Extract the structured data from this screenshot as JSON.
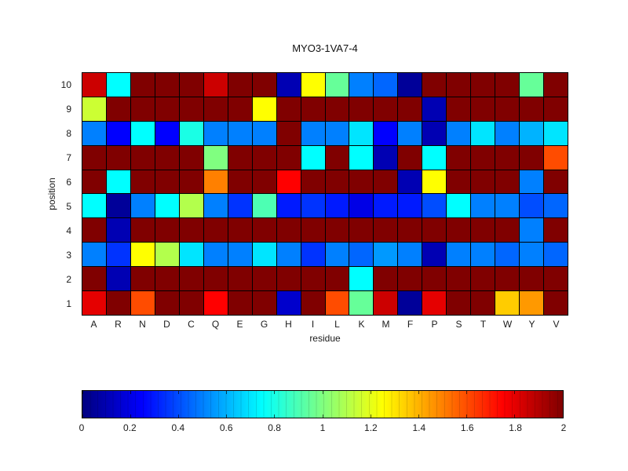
{
  "figure": {
    "background": "#ffffff",
    "grid_line_color": "#000000",
    "text_color": "#1a1a1a"
  },
  "chart_data": {
    "type": "heatmap",
    "title": "MYO3-1VA7-4",
    "xlabel": "residue",
    "ylabel": "position",
    "colormap": "jet",
    "x_categories": [
      "A",
      "R",
      "N",
      "D",
      "C",
      "Q",
      "E",
      "G",
      "H",
      "I",
      "L",
      "K",
      "M",
      "F",
      "P",
      "S",
      "T",
      "W",
      "Y",
      "V"
    ],
    "y_categories": [
      "10",
      "9",
      "8",
      "7",
      "6",
      "5",
      "4",
      "3",
      "2",
      "1"
    ],
    "value_range": [
      0,
      2
    ],
    "values": [
      [
        1.85,
        0.75,
        2,
        2,
        2,
        1.85,
        2,
        2,
        0.1,
        1.25,
        0.95,
        0.5,
        0.45,
        0.05,
        2,
        2,
        2,
        2,
        0.95,
        2
      ],
      [
        1.15,
        2,
        2,
        2,
        2,
        2,
        2,
        1.25,
        2,
        2,
        2,
        2,
        2,
        2,
        0.1,
        2,
        2,
        2,
        2,
        2
      ],
      [
        0.5,
        0.25,
        0.75,
        0.25,
        0.8,
        0.5,
        0.5,
        0.5,
        2,
        0.5,
        0.5,
        0.7,
        0.25,
        0.5,
        0.1,
        0.5,
        0.7,
        0.5,
        0.6,
        0.7
      ],
      [
        2,
        2,
        2,
        2,
        2,
        1.0,
        2,
        2,
        2,
        0.75,
        2,
        0.75,
        0.1,
        2,
        0.75,
        2,
        2,
        2,
        2,
        1.6
      ],
      [
        2,
        0.75,
        2,
        2,
        2,
        1.5,
        2,
        2,
        1.75,
        2,
        2,
        2,
        2,
        0.1,
        1.25,
        2,
        2,
        2,
        0.5,
        2
      ],
      [
        0.75,
        0.05,
        0.5,
        0.75,
        1.1,
        0.5,
        0.35,
        0.9,
        0.3,
        0.35,
        0.3,
        0.2,
        0.3,
        0.3,
        0.4,
        0.75,
        0.5,
        0.5,
        0.4,
        0.45
      ],
      [
        2,
        0.1,
        2,
        2,
        2,
        2,
        2,
        2,
        2,
        2,
        2,
        2,
        2,
        2,
        2,
        2,
        2,
        2,
        0.5,
        2
      ],
      [
        0.5,
        0.35,
        1.25,
        1.1,
        0.7,
        0.5,
        0.5,
        0.7,
        0.5,
        0.35,
        0.5,
        0.45,
        0.55,
        0.5,
        0.1,
        0.5,
        0.5,
        0.45,
        0.5,
        0.45
      ],
      [
        2,
        0.1,
        2,
        2,
        2,
        2,
        2,
        2,
        2,
        2,
        2,
        0.75,
        2,
        2,
        2,
        2,
        2,
        2,
        2,
        2
      ],
      [
        1.8,
        2,
        1.6,
        2,
        2,
        1.75,
        2,
        2,
        0.15,
        2,
        1.6,
        0.95,
        1.85,
        0.05,
        1.8,
        2,
        2,
        1.35,
        1.45,
        2
      ]
    ],
    "colorbar": {
      "min": 0,
      "max": 2,
      "ticks": [
        0,
        0.2,
        0.4,
        0.6,
        0.8,
        1,
        1.2,
        1.4,
        1.6,
        1.8,
        2
      ],
      "tick_labels": [
        "0",
        "0.2",
        "0.4",
        "0.6",
        "0.8",
        "1",
        "1.2",
        "1.4",
        "1.6",
        "1.8",
        "2"
      ],
      "orientation": "horizontal"
    }
  }
}
